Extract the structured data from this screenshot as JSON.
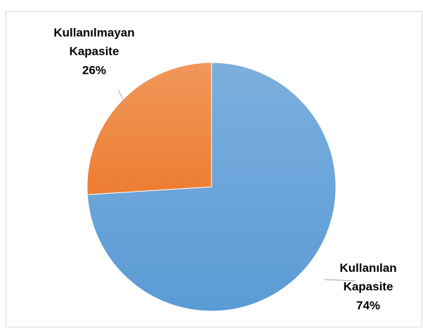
{
  "chart_data": {
    "type": "pie",
    "categories": [
      "Kullanılan Kapasite",
      "Kullanılmayan Kapasite"
    ],
    "values": [
      74,
      26
    ],
    "value_labels": [
      "74%",
      "26%"
    ],
    "colors": [
      "#5b9bd5",
      "#ed7d31"
    ]
  }
}
